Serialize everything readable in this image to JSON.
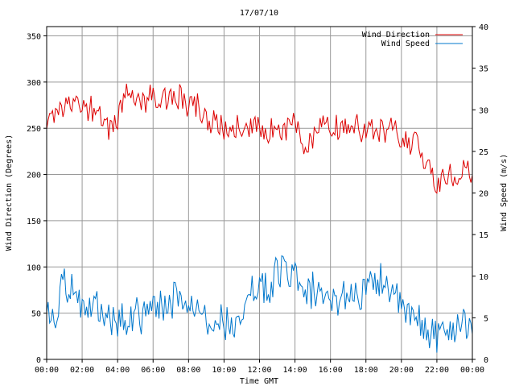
{
  "chart_data": {
    "type": "line",
    "title": "17/07/10",
    "xlabel": "Time GMT",
    "ylabel": "Wind Direction (Degrees)",
    "y2label": "Wind Speed (m/s)",
    "x_ticks": [
      "00:00",
      "02:00",
      "04:00",
      "06:00",
      "08:00",
      "10:00",
      "12:00",
      "14:00",
      "16:00",
      "18:00",
      "20:00",
      "22:00",
      "00:00"
    ],
    "xlim_hours": [
      0,
      24
    ],
    "ylim": [
      0,
      360
    ],
    "y_ticks": [
      0,
      50,
      100,
      150,
      200,
      250,
      300,
      350
    ],
    "y2lim": [
      0,
      40
    ],
    "y2_ticks": [
      0,
      5,
      10,
      15,
      20,
      25,
      30,
      35,
      40
    ],
    "grid": true,
    "legend_position": "top-right",
    "series": [
      {
        "name": "Wind Direction",
        "axis": "left",
        "color": "#dd0000",
        "x": [
          "00:00",
          "00:30",
          "01:00",
          "01:30",
          "02:00",
          "02:30",
          "03:00",
          "03:30",
          "04:00",
          "04:30",
          "05:00",
          "05:30",
          "06:00",
          "06:30",
          "07:00",
          "07:30",
          "08:00",
          "08:30",
          "09:00",
          "09:30",
          "10:00",
          "10:30",
          "11:00",
          "11:30",
          "12:00",
          "12:30",
          "13:00",
          "13:30",
          "14:00",
          "14:30",
          "15:00",
          "15:30",
          "16:00",
          "16:30",
          "17:00",
          "17:30",
          "18:00",
          "18:30",
          "19:00",
          "19:30",
          "20:00",
          "20:30",
          "21:00",
          "21:30",
          "22:00",
          "22:30",
          "23:00",
          "23:30",
          "24:00"
        ],
        "values": [
          250,
          268,
          272,
          275,
          270,
          272,
          268,
          250,
          262,
          290,
          288,
          280,
          285,
          278,
          282,
          285,
          270,
          275,
          262,
          255,
          250,
          252,
          255,
          250,
          255,
          248,
          245,
          250,
          260,
          225,
          240,
          250,
          252,
          250,
          248,
          252,
          245,
          250,
          248,
          248,
          240,
          235,
          230,
          210,
          190,
          200,
          195,
          205,
          200
        ]
      },
      {
        "name": "Wind Speed",
        "axis": "right",
        "color": "#0077cc",
        "x": [
          "00:00",
          "00:30",
          "01:00",
          "01:30",
          "02:00",
          "02:30",
          "03:00",
          "03:30",
          "04:00",
          "04:30",
          "05:00",
          "05:30",
          "06:00",
          "06:30",
          "07:00",
          "07:30",
          "08:00",
          "08:30",
          "09:00",
          "09:30",
          "10:00",
          "10:30",
          "11:00",
          "11:30",
          "12:00",
          "12:30",
          "13:00",
          "13:30",
          "14:00",
          "14:30",
          "15:00",
          "15:30",
          "16:00",
          "16:30",
          "17:00",
          "17:30",
          "18:00",
          "18:30",
          "19:00",
          "19:30",
          "20:00",
          "20:30",
          "21:00",
          "21:30",
          "22:00",
          "22:30",
          "23:00",
          "23:30",
          "24:00"
        ],
        "values": [
          6,
          5.5,
          9.5,
          8,
          6,
          7,
          6.5,
          5,
          4.5,
          5,
          5.5,
          5,
          6,
          6.5,
          7,
          7.5,
          7,
          6.5,
          5,
          5.5,
          4,
          4.5,
          6.5,
          8,
          9.5,
          8,
          10.5,
          11,
          10,
          7,
          8.5,
          6.5,
          6.5,
          7.5,
          8,
          8,
          8,
          9,
          10,
          8,
          6,
          5,
          4.5,
          3.5,
          3,
          3,
          4,
          5,
          4
        ]
      }
    ]
  }
}
